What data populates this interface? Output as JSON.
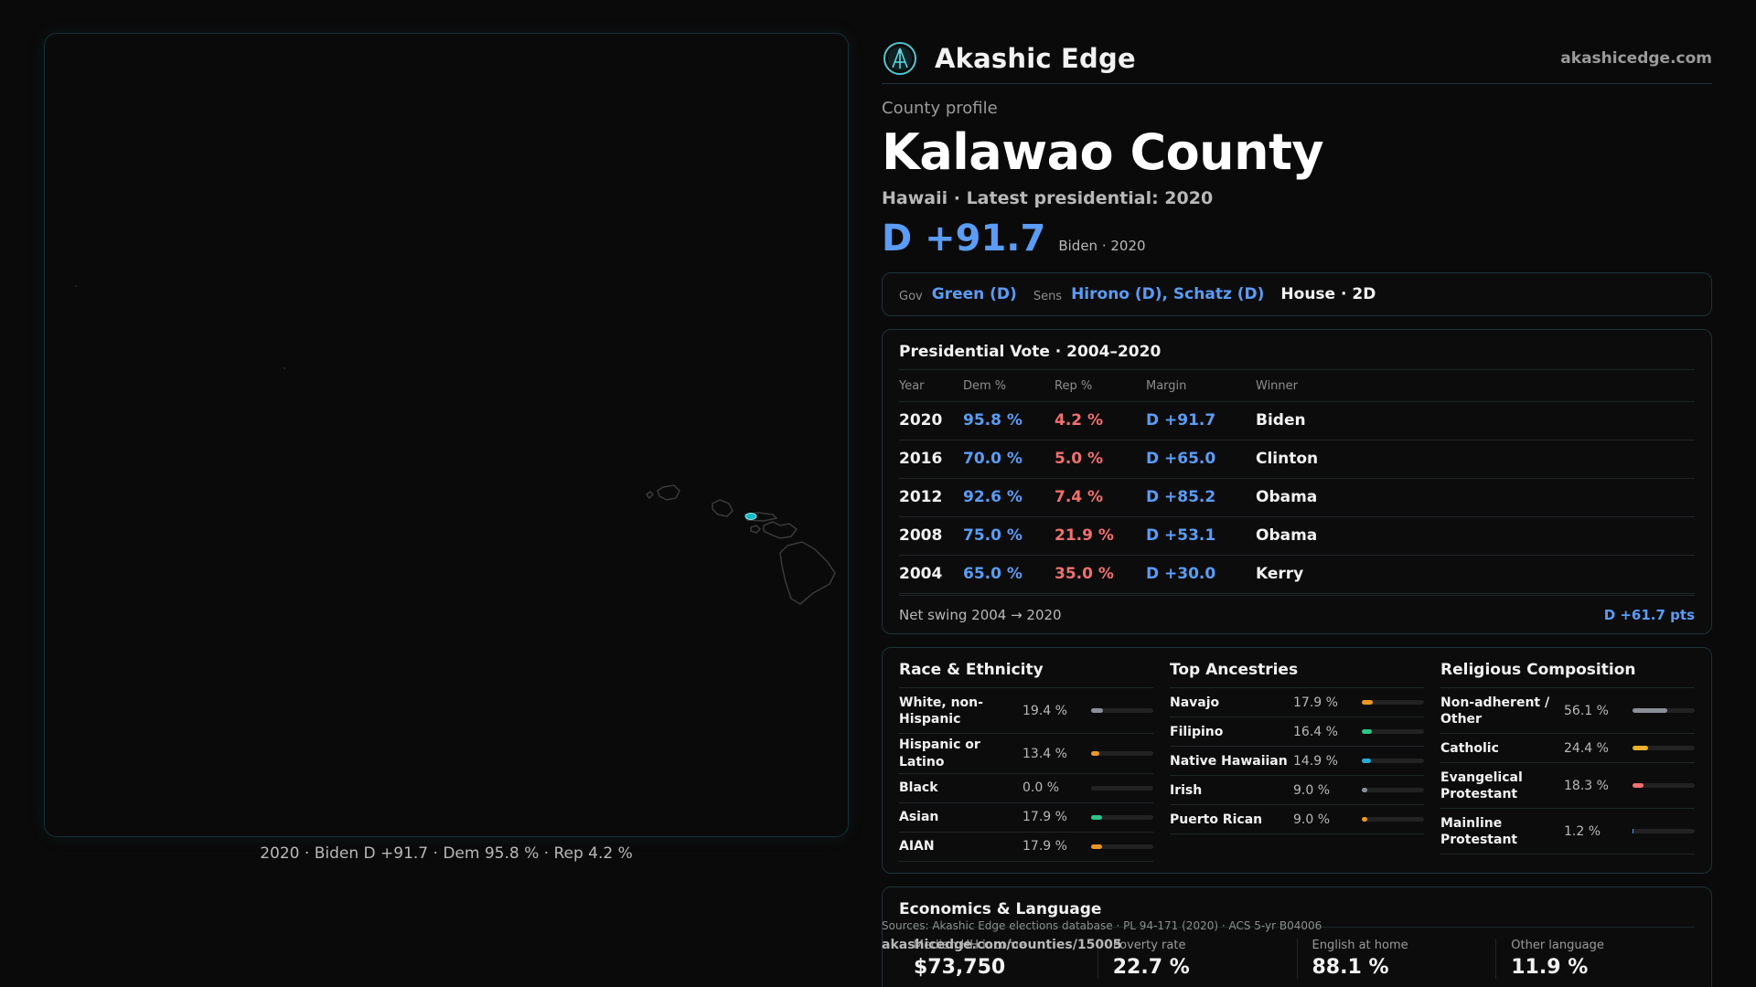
{
  "map": {
    "caption": "2020 · Biden D +91.7 · Dem 95.8 % · Rep 4.2 %"
  },
  "header": {
    "brand": "Akashic Edge",
    "site": "akashicedge.com"
  },
  "profile": {
    "eyebrow": "County profile",
    "title": "Kalawao County",
    "subtitle": "Hawaii · Latest presidential: 2020",
    "margin": "D +91.7",
    "margin_note": "Biden · 2020"
  },
  "officials": {
    "gov_label": "Gov",
    "gov": "Green (D)",
    "sens_label": "Sens",
    "sens": "Hirono (D), Schatz (D)",
    "house": "House · 2D"
  },
  "presidential": {
    "title": "Presidential Vote · 2004–2020",
    "columns": [
      "Year",
      "Dem %",
      "Rep %",
      "Margin",
      "Winner"
    ],
    "rows": [
      [
        "2020",
        "95.8 %",
        "4.2 %",
        "D +91.7",
        "Biden"
      ],
      [
        "2016",
        "70.0 %",
        "5.0 %",
        "D +65.0",
        "Clinton"
      ],
      [
        "2012",
        "92.6 %",
        "7.4 %",
        "D +85.2",
        "Obama"
      ],
      [
        "2008",
        "75.0 %",
        "21.9 %",
        "D +53.1",
        "Obama"
      ],
      [
        "2004",
        "65.0 %",
        "35.0 %",
        "D +30.0",
        "Kerry"
      ]
    ],
    "swing_label": "Net swing 2004 → 2020",
    "swing_value": "D +61.7 pts"
  },
  "race": {
    "title": "Race & Ethnicity",
    "items": [
      {
        "label": "White, non-Hispanic",
        "value": "19.4 %",
        "pct": 19.4,
        "color": "#8a8f98"
      },
      {
        "label": "Hispanic or Latino",
        "value": "13.4 %",
        "pct": 13.4,
        "color": "#e8962a"
      },
      {
        "label": "Black",
        "value": "0.0 %",
        "pct": 0.0,
        "color": "#8a8f98"
      },
      {
        "label": "Asian",
        "value": "17.9 %",
        "pct": 17.9,
        "color": "#2ec489"
      },
      {
        "label": "AIAN",
        "value": "17.9 %",
        "pct": 17.9,
        "color": "#e8962a"
      }
    ]
  },
  "ancestries": {
    "title": "Top Ancestries",
    "items": [
      {
        "label": "Navajo",
        "value": "17.9 %",
        "pct": 17.9,
        "color": "#e8962a"
      },
      {
        "label": "Filipino",
        "value": "16.4 %",
        "pct": 16.4,
        "color": "#2ec489"
      },
      {
        "label": "Native Hawaiian",
        "value": "14.9 %",
        "pct": 14.9,
        "color": "#2aa8d6"
      },
      {
        "label": "Irish",
        "value": "9.0 %",
        "pct": 9.0,
        "color": "#8a8f98"
      },
      {
        "label": "Puerto Rican",
        "value": "9.0 %",
        "pct": 9.0,
        "color": "#e8962a"
      }
    ]
  },
  "religion": {
    "title": "Religious Composition",
    "items": [
      {
        "label": "Non-adherent / Other",
        "value": "56.1 %",
        "pct": 56.1,
        "color": "#8a8f98"
      },
      {
        "label": "Catholic",
        "value": "24.4 %",
        "pct": 24.4,
        "color": "#e8b22a"
      },
      {
        "label": "Evangelical Protestant",
        "value": "18.3 %",
        "pct": 18.3,
        "color": "#f07070"
      },
      {
        "label": "Mainline Protestant",
        "value": "1.2 %",
        "pct": 1.2,
        "color": "#5b9cf5"
      }
    ]
  },
  "economics": {
    "title": "Economics & Language",
    "cells": [
      {
        "label": "Median HH income",
        "value": "$73,750"
      },
      {
        "label": "Poverty rate",
        "value": "22.7 %"
      },
      {
        "label": "English at home",
        "value": "88.1 %"
      },
      {
        "label": "Other language",
        "value": "11.9 %"
      }
    ]
  },
  "footer": {
    "sources": "Sources: Akashic Edge elections database · PL 94-171 (2020) · ACS 5-yr B04006",
    "url": "akashicedge.com/counties/15005"
  },
  "colors": {
    "dem": "#5b9cf5",
    "rep": "#f07070",
    "highlight": "#1ab7c4"
  }
}
